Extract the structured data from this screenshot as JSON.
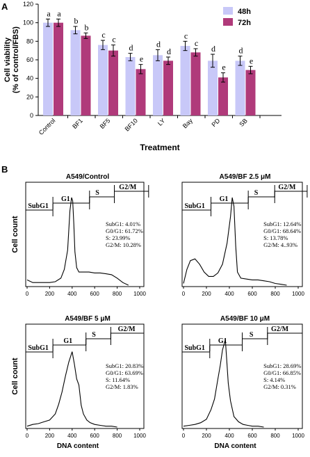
{
  "panel_labels": [
    "A",
    "B"
  ],
  "chart_data": [
    {
      "type": "bar",
      "panel": "A",
      "categories": [
        "Control",
        "BF1",
        "BF5",
        "BF10",
        "LY",
        "Bay",
        "PD",
        "SB"
      ],
      "series": [
        {
          "name": "48h",
          "color": "#c8c8f8",
          "values": [
            100,
            92,
            76,
            63,
            65,
            75,
            59,
            59
          ],
          "errors": [
            4,
            4,
            5,
            4,
            6,
            5,
            7,
            5
          ],
          "letters": [
            "a",
            "b",
            "c",
            "d",
            "d",
            "c",
            "d",
            "d"
          ]
        },
        {
          "name": "72h",
          "color": "#b03a7a",
          "values": [
            100,
            86,
            70,
            50,
            59,
            68,
            41,
            49
          ],
          "errors": [
            4,
            3,
            6,
            5,
            4,
            4,
            5,
            4
          ],
          "letters": [
            "a",
            "b",
            "c",
            "e",
            "d",
            "c",
            "e",
            "e"
          ]
        }
      ],
      "xlabel": "Treatment",
      "ylabel_lines": [
        "Cell viability",
        "(% of control/FBS)"
      ],
      "ylim": [
        0,
        120
      ],
      "yticks": [
        0,
        20,
        40,
        60,
        80,
        100,
        120
      ],
      "legend_position": "top-right",
      "grid": false
    },
    {
      "type": "line",
      "panel": "B",
      "title": "A549/Control",
      "xticks": [
        "0",
        "200",
        "400",
        "600",
        "800",
        "1000"
      ],
      "xlim": [
        0,
        1000
      ],
      "ylabel": "Cell count",
      "xlabel": "",
      "gates": [
        "SubG1",
        "G1",
        "S",
        "G2/M"
      ],
      "stats": [
        "SubG1: 4.01%",
        "G0/G1: 61.72%",
        "S: 23.99%",
        "G2/M: 10.28%"
      ],
      "x": [
        0,
        50,
        100,
        150,
        200,
        250,
        300,
        330,
        360,
        380,
        395,
        405,
        415,
        425,
        440,
        460,
        500,
        550,
        600,
        650,
        700,
        750,
        800,
        850,
        900
      ],
      "y": [
        6,
        3,
        3,
        3,
        3,
        4,
        8,
        18,
        40,
        85,
        100,
        96,
        70,
        38,
        20,
        15,
        15,
        15,
        14,
        14,
        13,
        12,
        8,
        3,
        0
      ]
    },
    {
      "type": "line",
      "panel": "B",
      "title": "A549/BF 2.5 μM",
      "xticks": [
        "0",
        "200",
        "400",
        "600",
        "800",
        "1000"
      ],
      "xlim": [
        0,
        1000
      ],
      "ylabel": "",
      "xlabel": "",
      "gates": [
        "SubG1",
        "G1",
        "S",
        "G2/M"
      ],
      "stats": [
        "SubG1: 12.64%",
        "G0/G1: 68.64%",
        "S: 13.78%",
        "G2/M: 4..93%"
      ],
      "x": [
        0,
        30,
        60,
        100,
        140,
        180,
        220,
        260,
        300,
        340,
        380,
        410,
        425,
        440,
        455,
        470,
        500,
        550,
        600,
        650,
        700,
        750,
        800,
        850,
        900
      ],
      "y": [
        2,
        18,
        28,
        30,
        24,
        15,
        10,
        10,
        14,
        24,
        48,
        78,
        100,
        90,
        45,
        15,
        8,
        7,
        6,
        6,
        5,
        4,
        2,
        1,
        0
      ]
    },
    {
      "type": "line",
      "panel": "B",
      "title": "A549/BF 5 μM",
      "xticks": [
        "0",
        "200",
        "400",
        "600",
        "800",
        "1000"
      ],
      "xlim": [
        0,
        1000
      ],
      "ylabel": "Cell count",
      "xlabel": "DNA content",
      "gates": [
        "SubG1",
        "G1",
        "S",
        "G2/M"
      ],
      "stats": [
        "SubG1: 20.83%",
        "G0/G1: 63.69%",
        "S: 11.64%",
        "G2/M: 1.83%"
      ],
      "x": [
        0,
        50,
        100,
        150,
        200,
        250,
        280,
        310,
        340,
        370,
        400,
        420,
        440,
        460,
        480,
        500,
        530,
        560,
        600,
        650,
        700,
        750,
        800
      ],
      "y": [
        1,
        3,
        4,
        6,
        8,
        15,
        26,
        40,
        58,
        74,
        86,
        72,
        55,
        48,
        25,
        15,
        8,
        5,
        3,
        2,
        1,
        1,
        0
      ]
    },
    {
      "type": "line",
      "panel": "B",
      "title": "A549/BF 10 μM",
      "xticks": [
        "0",
        "200",
        "400",
        "600",
        "800",
        "1000"
      ],
      "xlim": [
        0,
        1000
      ],
      "ylabel": "",
      "xlabel": "DNA content",
      "gates": [
        "SubG1",
        "G1",
        "S",
        "G2/M"
      ],
      "stats": [
        "SubG1: 28.69%",
        "G0/G1: 66.85%",
        "S: 4.14%",
        "G2/M: 0.31%"
      ],
      "x": [
        0,
        50,
        100,
        150,
        200,
        240,
        270,
        300,
        320,
        340,
        355,
        365,
        375,
        390,
        410,
        440,
        480,
        520,
        560,
        600,
        650,
        700
      ],
      "y": [
        1,
        2,
        3,
        5,
        9,
        20,
        32,
        55,
        70,
        88,
        95,
        100,
        80,
        50,
        30,
        12,
        6,
        3,
        2,
        1,
        1,
        0
      ]
    }
  ]
}
